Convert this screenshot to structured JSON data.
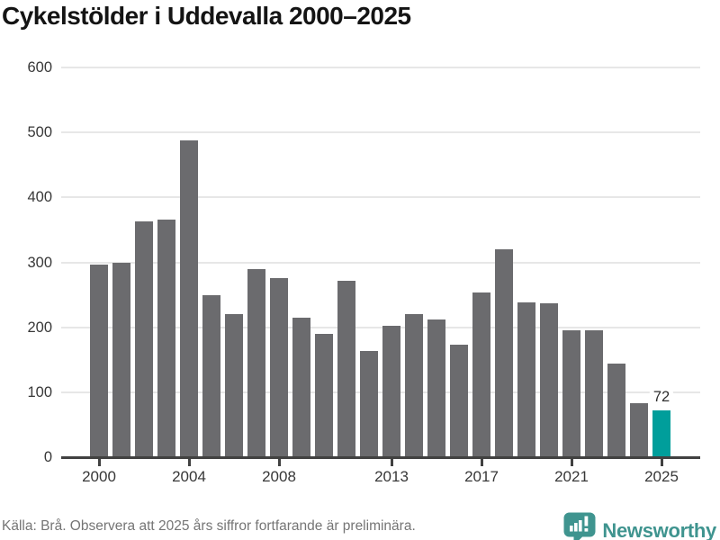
{
  "title": "Cykelstölder i Uddevalla 2000–2025",
  "chart_data": {
    "type": "bar",
    "title": "Cykelstölder i Uddevalla 2000–2025",
    "categories": [
      "2000",
      "2001",
      "2002",
      "2003",
      "2004",
      "2005",
      "2006",
      "2007",
      "2008",
      "2009",
      "2010",
      "2011",
      "2012",
      "2013",
      "2014",
      "2015",
      "2016",
      "2017",
      "2018",
      "2019",
      "2020",
      "2021",
      "2022",
      "2023",
      "2024",
      "2025"
    ],
    "values": [
      297,
      300,
      363,
      366,
      488,
      250,
      220,
      289,
      276,
      215,
      190,
      271,
      164,
      202,
      221,
      212,
      173,
      254,
      320,
      238,
      237,
      195,
      196,
      144,
      83,
      72
    ],
    "highlight": {
      "category": "2025",
      "value": 72,
      "label": "72"
    },
    "x_tick_labels": [
      "2000",
      "2004",
      "2008",
      "2013",
      "2017",
      "2021",
      "2025"
    ],
    "y_ticks": [
      0,
      100,
      200,
      300,
      400,
      500,
      600
    ],
    "ylim": [
      0,
      600
    ],
    "xlabel": "",
    "ylabel": "",
    "grid": "horizontal",
    "legend": false
  },
  "colors": {
    "bar": "#6b6b6e",
    "highlight_bar": "#009e9b",
    "axis": "#414141",
    "gridline": "#e7e7e7",
    "brand_teal": "#3f948f"
  },
  "footer": {
    "source_note": "Källa: Brå. Observera att 2025 års siffror fortfarande är preliminära.",
    "brand_name": "Newsworthy"
  }
}
